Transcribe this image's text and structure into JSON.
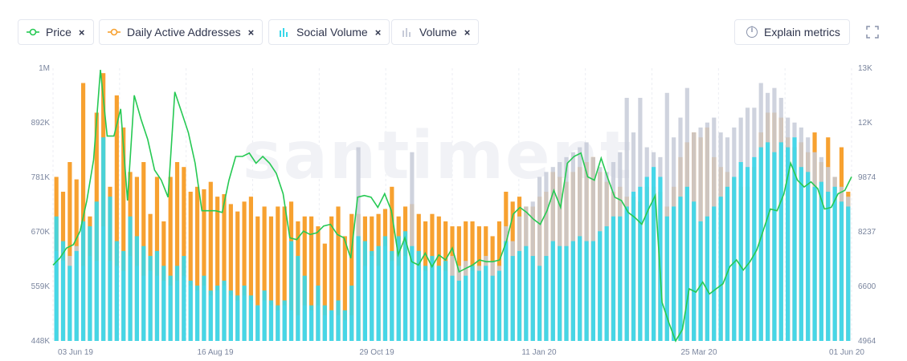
{
  "metrics": [
    {
      "label": "Price",
      "close": "×",
      "icon": "line-icon",
      "color": "#26c953"
    },
    {
      "label": "Daily Active Addresses",
      "close": "×",
      "icon": "line-icon",
      "color": "#f7a130"
    },
    {
      "label": "Social Volume",
      "close": "×",
      "icon": "bar-icon",
      "color": "#37d7ea"
    },
    {
      "label": "Volume",
      "close": "×",
      "icon": "bar-icon",
      "color": "#c7cbd8"
    }
  ],
  "explain_label": "Explain metrics",
  "watermark": "santiment",
  "chart_data": {
    "type": "bar",
    "x_ticks": [
      "03 Jun 19",
      "16 Aug 19",
      "29 Oct 19",
      "11 Jan 20",
      "25 Mar 20",
      "01 Jun 20"
    ],
    "left_axis_ticks": [
      "1M",
      "892K",
      "781K",
      "670K",
      "559K",
      "448K"
    ],
    "right_axis_ticks": [
      "13K",
      "12K",
      "9874",
      "8237",
      "6600",
      "4964"
    ],
    "left_range": [
      448000,
      1000000
    ],
    "right_range": [
      4964,
      13000
    ],
    "grid": "vertical",
    "legend": "top-left",
    "series": [
      {
        "name": "Price",
        "type": "line",
        "color": "#26c953",
        "axis": "right",
        "values": [
          7200,
          7400,
          7700,
          7800,
          8200,
          9100,
          10300,
          12950,
          11000,
          11000,
          11800,
          9100,
          12200,
          11500,
          10900,
          10000,
          9700,
          9200,
          12300,
          11700,
          11100,
          10200,
          8800,
          8800,
          8800,
          8750,
          9700,
          10400,
          10400,
          10500,
          10200,
          10400,
          10200,
          9900,
          9300,
          8000,
          7950,
          8200,
          8100,
          8150,
          8350,
          8400,
          8100,
          8000,
          7400,
          9200,
          9250,
          9200,
          8900,
          9300,
          8800,
          7500,
          8000,
          7300,
          7200,
          7550,
          7150,
          7500,
          7350,
          7700,
          7000,
          7100,
          7200,
          7350,
          7300,
          7300,
          7350,
          7900,
          8700,
          8900,
          8750,
          8550,
          8400,
          8800,
          9400,
          8900,
          10200,
          10400,
          10500,
          9800,
          9700,
          10350,
          9750,
          9200,
          9100,
          8750,
          8600,
          8400,
          8850,
          9250,
          6100,
          5500,
          4964,
          5300,
          6500,
          6400,
          6700,
          6350,
          6500,
          6650,
          7150,
          7350,
          7050,
          7300,
          7650,
          8250,
          8850,
          8800,
          9300,
          10200,
          9700,
          9500,
          9650,
          9450,
          8850,
          8900,
          9300,
          9400,
          9800
        ]
      },
      {
        "name": "Daily Active Addresses",
        "type": "bar",
        "color": "#f7a130",
        "axis": "left",
        "values": [
          780000,
          750000,
          810000,
          775000,
          970000,
          700000,
          910000,
          990000,
          760000,
          945000,
          880000,
          790000,
          780000,
          810000,
          705000,
          780000,
          690000,
          780000,
          810000,
          800000,
          750000,
          760000,
          755000,
          770000,
          740000,
          745000,
          725000,
          710000,
          730000,
          740000,
          700000,
          720000,
          700000,
          720000,
          720000,
          730000,
          690000,
          700000,
          700000,
          680000,
          645000,
          700000,
          720000,
          660000,
          705000,
          705000,
          700000,
          700000,
          705000,
          715000,
          760000,
          700000,
          720000,
          725000,
          705000,
          690000,
          705000,
          700000,
          690000,
          680000,
          680000,
          690000,
          690000,
          680000,
          680000,
          660000,
          690000,
          750000,
          730000,
          740000,
          720000,
          720000,
          740000,
          750000,
          790000,
          780000,
          770000,
          790000,
          800000,
          810000,
          820000,
          790000,
          770000,
          750000,
          760000,
          740000,
          740000,
          730000,
          760000,
          760000,
          750000,
          720000,
          760000,
          820000,
          850000,
          870000,
          860000,
          880000,
          820000,
          800000,
          790000,
          780000,
          760000,
          760000,
          800000,
          870000,
          910000,
          910000,
          900000,
          860000,
          840000,
          850000,
          830000,
          870000,
          810000,
          860000,
          780000,
          840000,
          750000
        ]
      },
      {
        "name": "Social Volume",
        "type": "bar",
        "color": "#37d7ea",
        "axis": "left",
        "values": [
          700000,
          650000,
          600000,
          630000,
          690000,
          680000,
          730000,
          860000,
          740000,
          650000,
          630000,
          700000,
          660000,
          640000,
          620000,
          630000,
          600000,
          580000,
          600000,
          620000,
          570000,
          560000,
          580000,
          550000,
          560000,
          570000,
          550000,
          540000,
          560000,
          540000,
          520000,
          550000,
          530000,
          520000,
          530000,
          650000,
          620000,
          580000,
          520000,
          560000,
          520000,
          510000,
          530000,
          510000,
          560000,
          660000,
          650000,
          630000,
          640000,
          660000,
          630000,
          660000,
          670000,
          640000,
          630000,
          600000,
          620000,
          600000,
          610000,
          580000,
          570000,
          580000,
          600000,
          590000,
          600000,
          580000,
          590000,
          650000,
          620000,
          630000,
          640000,
          620000,
          600000,
          620000,
          650000,
          640000,
          640000,
          650000,
          660000,
          650000,
          650000,
          670000,
          680000,
          700000,
          700000,
          720000,
          750000,
          760000,
          780000,
          800000,
          780000,
          700000,
          720000,
          740000,
          760000,
          730000,
          690000,
          700000,
          720000,
          740000,
          760000,
          780000,
          810000,
          800000,
          820000,
          840000,
          850000,
          830000,
          850000,
          840000,
          860000,
          800000,
          790000,
          760000,
          770000,
          750000,
          760000,
          730000,
          720000
        ]
      },
      {
        "name": "Volume",
        "type": "bar",
        "color": "#c7cbd8",
        "axis": "left",
        "values": [
          630000,
          610000,
          620000,
          640000,
          600000,
          620000,
          610000,
          680000,
          610000,
          600000,
          590000,
          620000,
          600000,
          580000,
          590000,
          580000,
          570000,
          560000,
          570000,
          580000,
          560000,
          550000,
          560000,
          540000,
          550000,
          560000,
          540000,
          530000,
          540000,
          530000,
          520000,
          530000,
          520000,
          510000,
          520000,
          510000,
          500000,
          520000,
          510000,
          520000,
          500000,
          510000,
          500000,
          490000,
          500000,
          840000,
          600000,
          620000,
          600000,
          640000,
          610000,
          600000,
          620000,
          830000,
          600000,
          590000,
          610000,
          600000,
          590000,
          620000,
          600000,
          610000,
          590000,
          600000,
          620000,
          610000,
          600000,
          680000,
          650000,
          700000,
          720000,
          730000,
          780000,
          790000,
          800000,
          810000,
          820000,
          830000,
          840000,
          850000,
          820000,
          800000,
          790000,
          810000,
          830000,
          940000,
          870000,
          940000,
          840000,
          830000,
          820000,
          950000,
          860000,
          900000,
          960000,
          870000,
          880000,
          890000,
          900000,
          870000,
          860000,
          880000,
          900000,
          920000,
          920000,
          970000,
          950000,
          960000,
          940000,
          900000,
          890000,
          880000,
          860000,
          830000,
          820000,
          800000,
          780000,
          760000,
          740000
        ]
      }
    ]
  }
}
